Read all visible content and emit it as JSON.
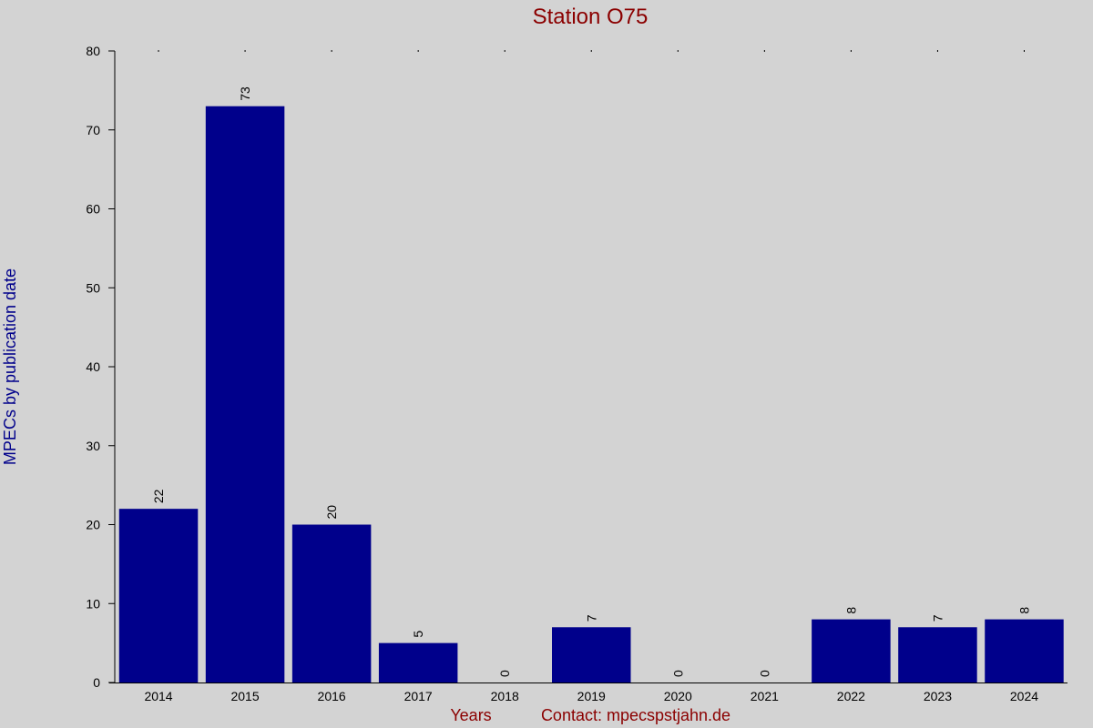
{
  "chart_data": {
    "type": "bar",
    "title": "Station O75",
    "y_label": "MPECs by publication date",
    "x_label": "Years",
    "note": "Contact: mpecspstjahn.de",
    "categories": [
      "2014",
      "2015",
      "2016",
      "2017",
      "2018",
      "2019",
      "2020",
      "2021",
      "2022",
      "2023",
      "2024"
    ],
    "values": [
      22,
      73,
      20,
      5,
      0,
      7,
      0,
      0,
      8,
      7,
      8
    ],
    "color": "#00008b",
    "ylim": [
      0,
      80
    ],
    "yticks": [
      0,
      10,
      20,
      30,
      40,
      50,
      60,
      70,
      80
    ]
  }
}
